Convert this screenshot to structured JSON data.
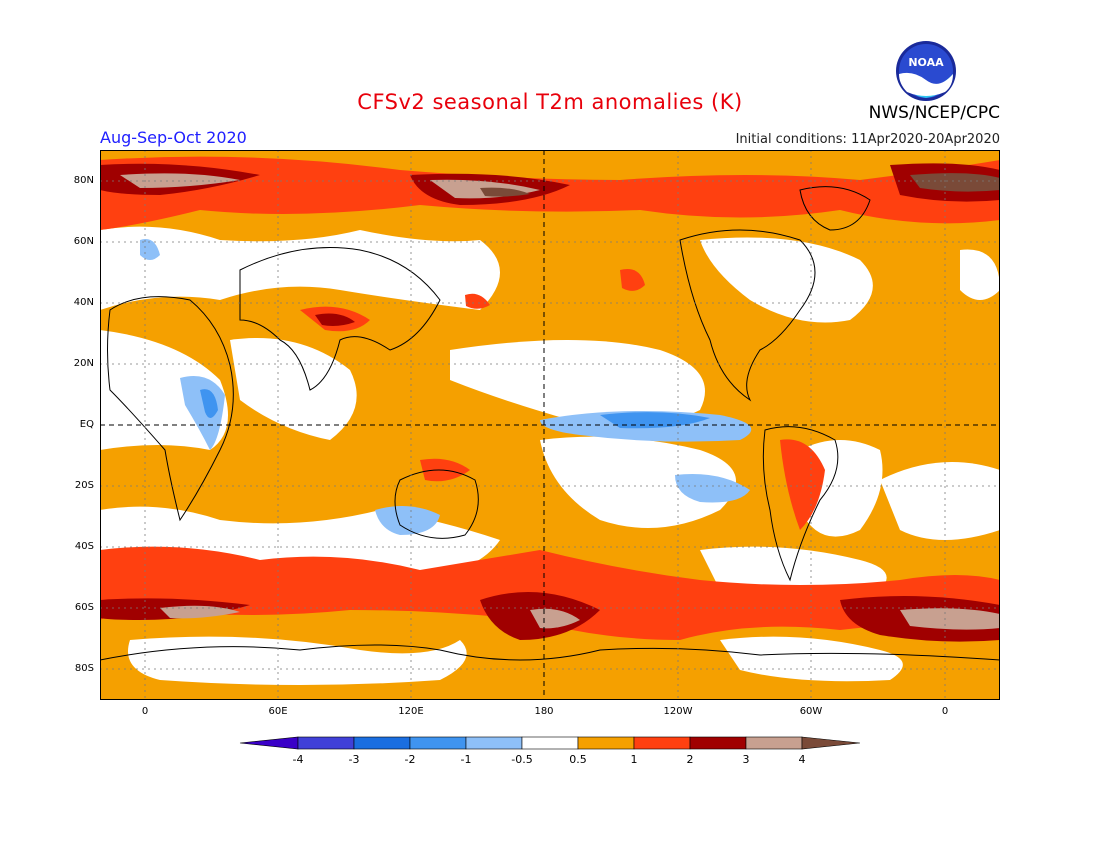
{
  "header": {
    "title": "CFSv2 seasonal T2m anomalies (K)",
    "organization": "NWS/NCEP/CPC",
    "season": "Aug-Sep-Oct 2020",
    "initial_conditions": "Initial conditions: 11Apr2020-20Apr2020",
    "logo_text": "NOAA"
  },
  "map": {
    "lat_ticks": [
      "80N",
      "60N",
      "40N",
      "20N",
      "EQ",
      "20S",
      "40S",
      "60S",
      "80S"
    ],
    "lon_ticks": [
      "0",
      "60E",
      "120E",
      "180",
      "120W",
      "60W",
      "0"
    ]
  },
  "legend": {
    "labels": [
      "-4",
      "-3",
      "-2",
      "-1",
      "-0.5",
      "0.5",
      "1",
      "2",
      "3",
      "4"
    ],
    "colors": [
      "#3a00c8",
      "#4040d8",
      "#1a6ee0",
      "#3f94f0",
      "#8ec0f8",
      "#ffffff",
      "#f5a000",
      "#ff4010",
      "#a00000",
      "#c8a090",
      "#7a4a38"
    ]
  }
}
